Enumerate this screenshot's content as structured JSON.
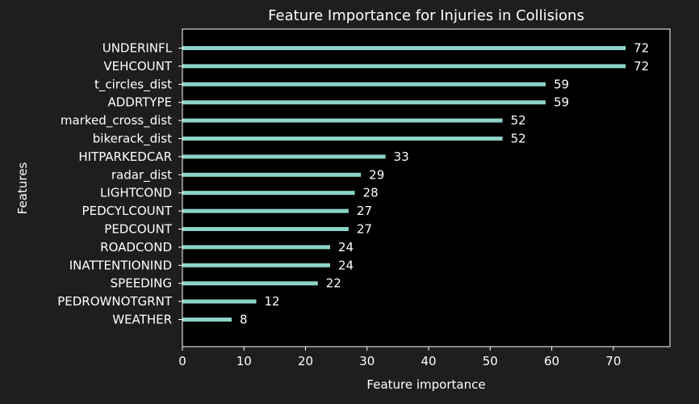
{
  "chart_data": {
    "type": "bar",
    "orientation": "horizontal",
    "title": "Feature Importance for Injuries in Collisions",
    "xlabel": "Feature importance",
    "ylabel": "Features",
    "xlim": [
      0,
      79.2
    ],
    "xticks": [
      0,
      10,
      20,
      30,
      40,
      50,
      60,
      70
    ],
    "grid": false,
    "categories": [
      "UNDERINFL",
      "VEHCOUNT",
      "t_circles_dist",
      "ADDRTYPE",
      "marked_cross_dist",
      "bikerack_dist",
      "HITPARKEDCAR",
      "radar_dist",
      "LIGHTCOND",
      "PEDCYLCOUNT",
      "PEDCOUNT",
      "ROADCOND",
      "INATTENTIONIND",
      "SPEEDING",
      "PEDROWNOTGRNT",
      "WEATHER"
    ],
    "values": [
      72,
      72,
      59,
      59,
      52,
      52,
      33,
      29,
      28,
      27,
      27,
      24,
      24,
      22,
      12,
      8
    ],
    "bar_color": "#8dd3c7",
    "background_color": "#000000",
    "figure_color": "#1e1e1e",
    "text_color": "#ffffff"
  }
}
